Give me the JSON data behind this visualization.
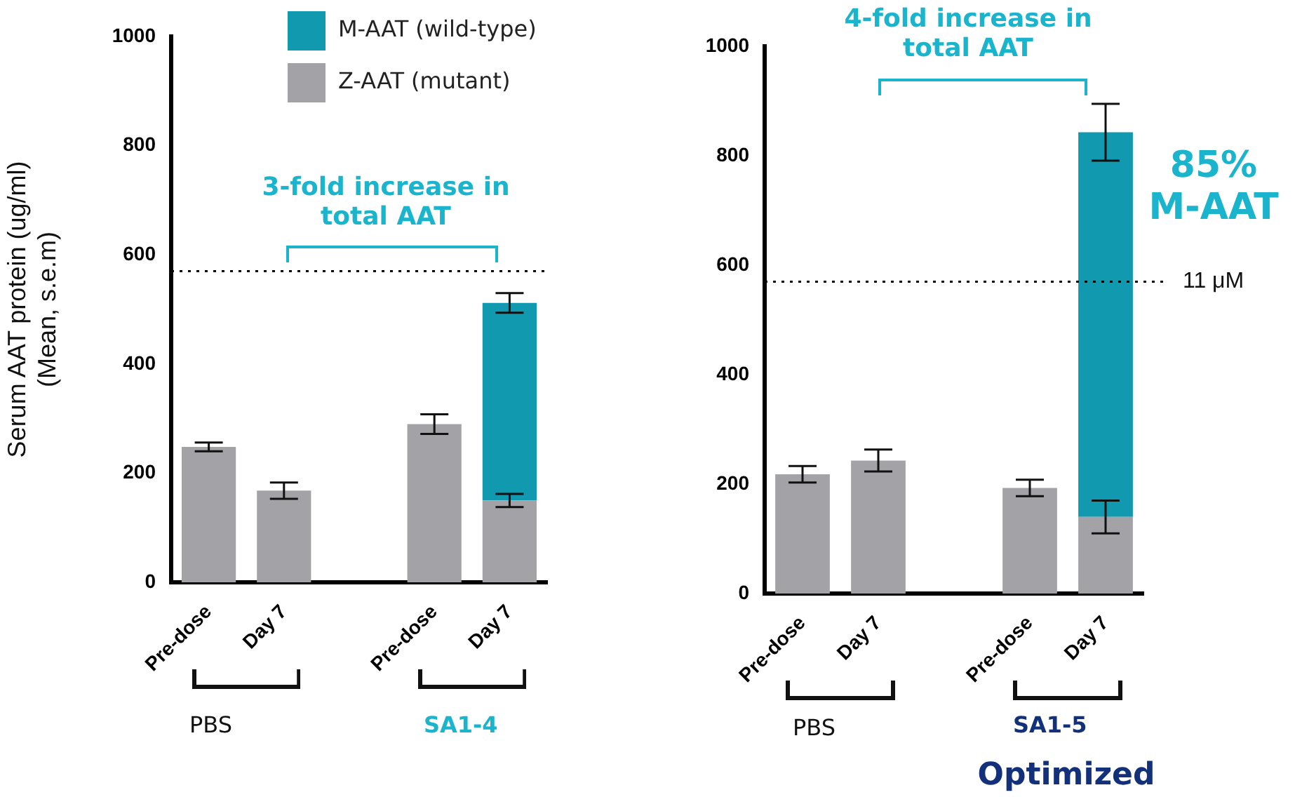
{
  "chart_data": [
    {
      "type": "bar",
      "stacked": true,
      "ylabel": "Serum AAT protein (ug/ml)\n(Mean, s.e.m)",
      "categories": [
        "Pre-dose",
        "Day 7",
        null,
        "Pre-dose",
        "Day 7"
      ],
      "series": [
        {
          "name": "Z-AAT (mutant)",
          "color": "#a3a2a6",
          "values": [
            248,
            168,
            null,
            290,
            150
          ],
          "errors": [
            8,
            15,
            null,
            18,
            12
          ]
        },
        {
          "name": "M-AAT (wild-type)",
          "color": "#1199b0",
          "values": [
            null,
            null,
            null,
            null,
            362
          ],
          "errors": [
            null,
            null,
            null,
            null,
            18
          ]
        }
      ],
      "ylim": [
        0,
        1000
      ],
      "yticks": [
        0,
        200,
        400,
        600,
        800,
        1000
      ],
      "grid": false,
      "legend": "top right",
      "ref_lines": [
        {
          "axis": "y",
          "value": 570,
          "line_style": "dotted",
          "color": "#000000"
        }
      ],
      "annotations": [
        "3-fold increase in total AAT",
        "PBS",
        "SA1-4"
      ]
    },
    {
      "type": "bar",
      "stacked": true,
      "categories": [
        "Pre-dose",
        "Day 7",
        null,
        "Pre-dose",
        "Day 7"
      ],
      "series": [
        {
          "color": "#a3a2a6",
          "values": [
            218,
            243,
            null,
            193,
            140
          ],
          "errors": [
            15,
            20,
            null,
            15,
            30
          ]
        },
        {
          "color": "#1199b0",
          "values": [
            null,
            null,
            null,
            null,
            703
          ],
          "errors": [
            null,
            null,
            null,
            null,
            52
          ]
        }
      ],
      "ylim": [
        0,
        1000
      ],
      "yticks": [
        0,
        200,
        400,
        600,
        800,
        1000
      ],
      "grid": false,
      "ref_lines": [
        {
          "axis": "y",
          "value": 570,
          "label": "11 μM",
          "line_style": "dotted",
          "color": "#000000"
        }
      ],
      "annotations": [
        "4-fold increase in total AAT",
        "85% M-AAT",
        "PBS",
        "SA1-5",
        "Optimized"
      ]
    }
  ]
}
